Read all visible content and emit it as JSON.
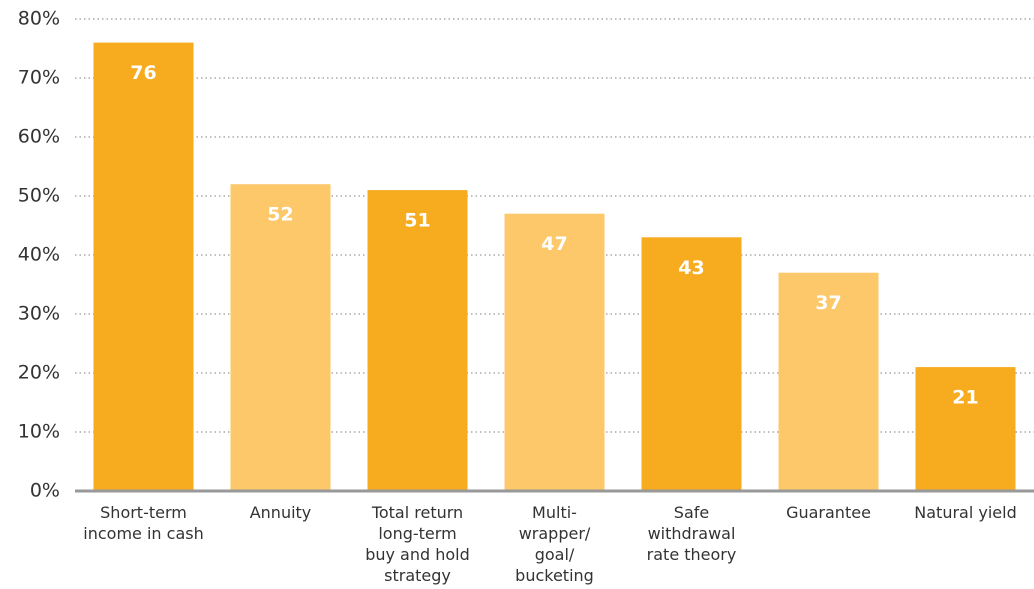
{
  "chart_data": {
    "type": "bar",
    "categories": [
      [
        "Short-term",
        "income in cash"
      ],
      [
        "Annuity"
      ],
      [
        "Total return",
        "long-term",
        "buy and hold",
        "strategy"
      ],
      [
        "Multi-",
        "wrapper/",
        "goal/",
        "bucketing"
      ],
      [
        "Safe",
        "withdrawal",
        "rate theory"
      ],
      [
        "Guarantee"
      ],
      [
        "Natural yield"
      ]
    ],
    "values": [
      76,
      52,
      51,
      47,
      43,
      37,
      21
    ],
    "colors": [
      "#f7ab1f",
      "#fcc86a",
      "#f7ab1f",
      "#fcc86a",
      "#f7ab1f",
      "#fcc86a",
      "#f7ab1f"
    ],
    "ylim": [
      0,
      80
    ],
    "yticks": [
      {
        "value": 0,
        "label": "0%"
      },
      {
        "value": 10,
        "label": "10%"
      },
      {
        "value": 20,
        "label": "20%"
      },
      {
        "value": 30,
        "label": "30%"
      },
      {
        "value": 40,
        "label": "40%"
      },
      {
        "value": 50,
        "label": "50%"
      },
      {
        "value": 60,
        "label": "60%"
      },
      {
        "value": 70,
        "label": "70%"
      },
      {
        "value": 80,
        "label": "80%"
      }
    ],
    "grid": true
  }
}
